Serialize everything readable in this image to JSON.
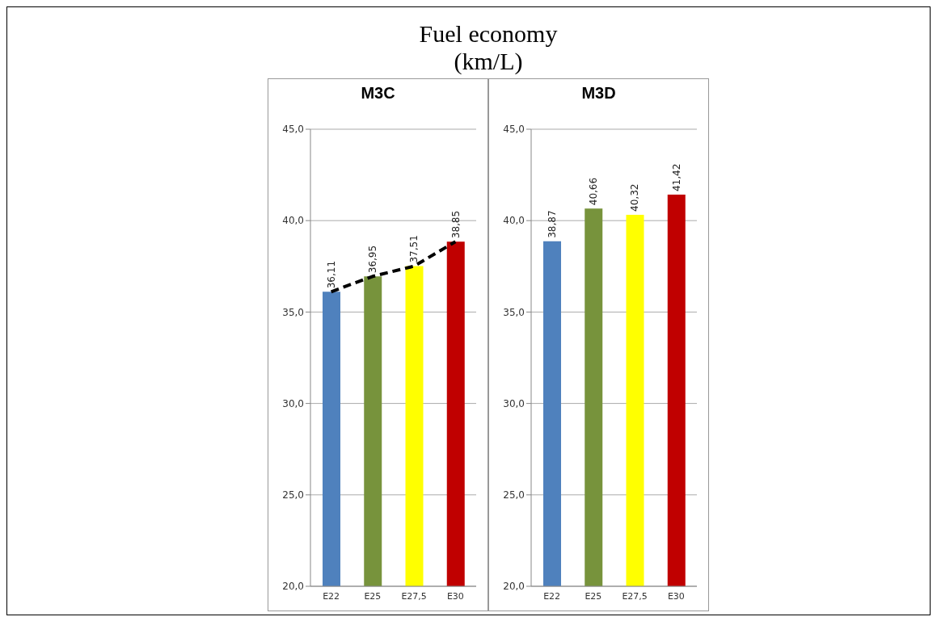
{
  "chart_data": [
    {
      "type": "bar",
      "title": "Fuel economy\n(km/L)",
      "subtitle": "M3C",
      "categories": [
        "E22",
        "E25",
        "E27,5",
        "E30"
      ],
      "ylim": [
        20,
        45
      ],
      "yticks": [
        {
          "value": 20,
          "label": "20,0"
        },
        {
          "value": 25,
          "label": "25,0"
        },
        {
          "value": 30,
          "label": "30,0"
        },
        {
          "value": 35,
          "label": "35,0"
        },
        {
          "value": 40,
          "label": "40,0"
        },
        {
          "value": 45,
          "label": "45,0"
        }
      ],
      "grid": "y",
      "legend": false,
      "series": [
        {
          "colors": [
            "#4f81bd",
            "#77933c",
            "#ffff00",
            "#c00000"
          ],
          "values": [
            36.11,
            36.95,
            37.51,
            38.85
          ],
          "value_labels": [
            "36,11",
            "36,95",
            "37,51",
            "38,85"
          ]
        },
        {
          "type": "line",
          "color": "#000000",
          "line_style": "dashed",
          "marker": "none",
          "x": [
            "E22",
            "E25",
            "E27,5",
            "E30"
          ],
          "values": [
            36.11,
            36.95,
            37.51,
            38.85
          ]
        }
      ]
    },
    {
      "type": "bar",
      "subtitle": "M3D",
      "categories": [
        "E22",
        "E25",
        "E27,5",
        "E30"
      ],
      "ylim": [
        20,
        45
      ],
      "yticks": [
        {
          "value": 20,
          "label": "20,0"
        },
        {
          "value": 25,
          "label": "25,0"
        },
        {
          "value": 30,
          "label": "30,0"
        },
        {
          "value": 35,
          "label": "35,0"
        },
        {
          "value": 40,
          "label": "40,0"
        },
        {
          "value": 45,
          "label": "45,0"
        }
      ],
      "grid": "y",
      "legend": false,
      "series": [
        {
          "colors": [
            "#4f81bd",
            "#77933c",
            "#ffff00",
            "#c00000"
          ],
          "values": [
            38.87,
            40.66,
            40.32,
            41.42
          ],
          "value_labels": [
            "38,87",
            "40,66",
            "40,32",
            "41,42"
          ]
        }
      ]
    }
  ]
}
